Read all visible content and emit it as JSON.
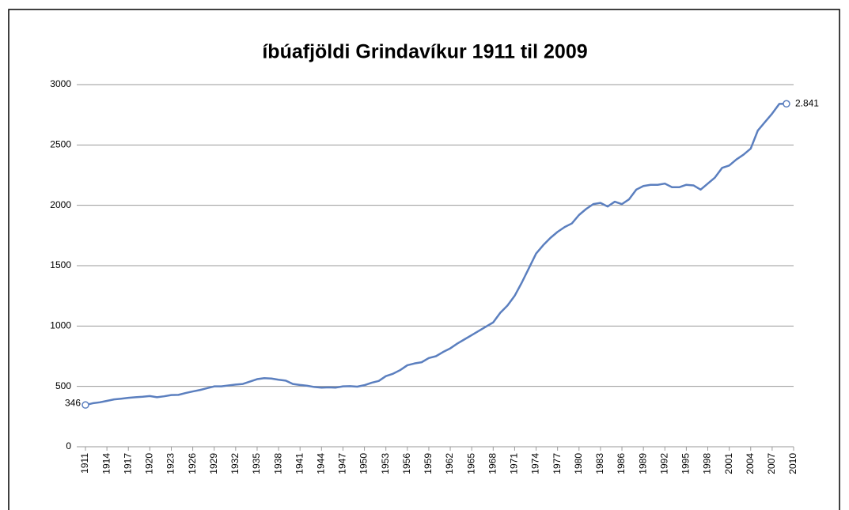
{
  "chart_data": {
    "type": "line",
    "title": "íbúafjöldi Grindavíkur 1911 til 2009",
    "x": [
      1911,
      1912,
      1913,
      1914,
      1915,
      1916,
      1917,
      1918,
      1919,
      1920,
      1921,
      1922,
      1923,
      1924,
      1925,
      1926,
      1927,
      1928,
      1929,
      1930,
      1931,
      1932,
      1933,
      1934,
      1935,
      1936,
      1937,
      1938,
      1939,
      1940,
      1941,
      1942,
      1943,
      1944,
      1945,
      1946,
      1947,
      1948,
      1949,
      1950,
      1951,
      1952,
      1953,
      1954,
      1955,
      1956,
      1957,
      1958,
      1959,
      1960,
      1961,
      1962,
      1963,
      1964,
      1965,
      1966,
      1967,
      1968,
      1969,
      1970,
      1971,
      1972,
      1973,
      1974,
      1975,
      1976,
      1977,
      1978,
      1979,
      1980,
      1981,
      1982,
      1983,
      1984,
      1985,
      1986,
      1987,
      1988,
      1989,
      1990,
      1991,
      1992,
      1993,
      1994,
      1995,
      1996,
      1997,
      1998,
      1999,
      2000,
      2001,
      2002,
      2003,
      2004,
      2005,
      2006,
      2007,
      2008,
      2009
    ],
    "values": [
      346,
      360,
      368,
      380,
      392,
      398,
      405,
      410,
      414,
      420,
      410,
      418,
      428,
      430,
      445,
      458,
      470,
      485,
      500,
      500,
      508,
      515,
      520,
      540,
      560,
      568,
      565,
      555,
      548,
      520,
      512,
      505,
      495,
      490,
      492,
      490,
      500,
      502,
      498,
      510,
      530,
      545,
      585,
      605,
      635,
      675,
      690,
      700,
      735,
      750,
      785,
      815,
      855,
      890,
      925,
      960,
      995,
      1030,
      1110,
      1170,
      1250,
      1360,
      1480,
      1600,
      1670,
      1730,
      1780,
      1820,
      1850,
      1920,
      1970,
      2010,
      2020,
      1990,
      2030,
      2010,
      2050,
      2130,
      2160,
      2170,
      2170,
      2180,
      2150,
      2150,
      2170,
      2165,
      2130,
      2180,
      2230,
      2310,
      2330,
      2380,
      2420,
      2470,
      2620,
      2690,
      2760,
      2840,
      2841
    ],
    "value_labels": [
      "346",
      null,
      null,
      null,
      null,
      null,
      null,
      null,
      null,
      null,
      null,
      null,
      null,
      null,
      null,
      null,
      null,
      null,
      null,
      null,
      null,
      null,
      null,
      null,
      null,
      null,
      null,
      null,
      null,
      null,
      null,
      null,
      null,
      null,
      null,
      null,
      null,
      null,
      null,
      null,
      null,
      null,
      null,
      null,
      null,
      null,
      null,
      null,
      null,
      null,
      null,
      null,
      null,
      null,
      null,
      null,
      null,
      null,
      null,
      null,
      null,
      null,
      null,
      null,
      null,
      null,
      null,
      null,
      null,
      null,
      null,
      null,
      null,
      null,
      null,
      null,
      null,
      null,
      null,
      null,
      null,
      null,
      null,
      null,
      null,
      null,
      null,
      null,
      null,
      null,
      null,
      null,
      null,
      null,
      null,
      null,
      null,
      null,
      "2.841"
    ],
    "color": "#5b7fbf",
    "xlim": [
      1911,
      2010
    ],
    "xticks": [
      1911,
      1914,
      1917,
      1920,
      1923,
      1926,
      1929,
      1932,
      1935,
      1938,
      1941,
      1944,
      1947,
      1950,
      1953,
      1956,
      1959,
      1962,
      1965,
      1968,
      1971,
      1974,
      1977,
      1980,
      1983,
      1986,
      1989,
      1992,
      1995,
      1998,
      2001,
      2004,
      2007,
      2010
    ],
    "ylim": [
      0,
      3000
    ],
    "yticks": [
      0,
      500,
      1000,
      1500,
      2000,
      2500,
      3000
    ],
    "grid": true
  }
}
